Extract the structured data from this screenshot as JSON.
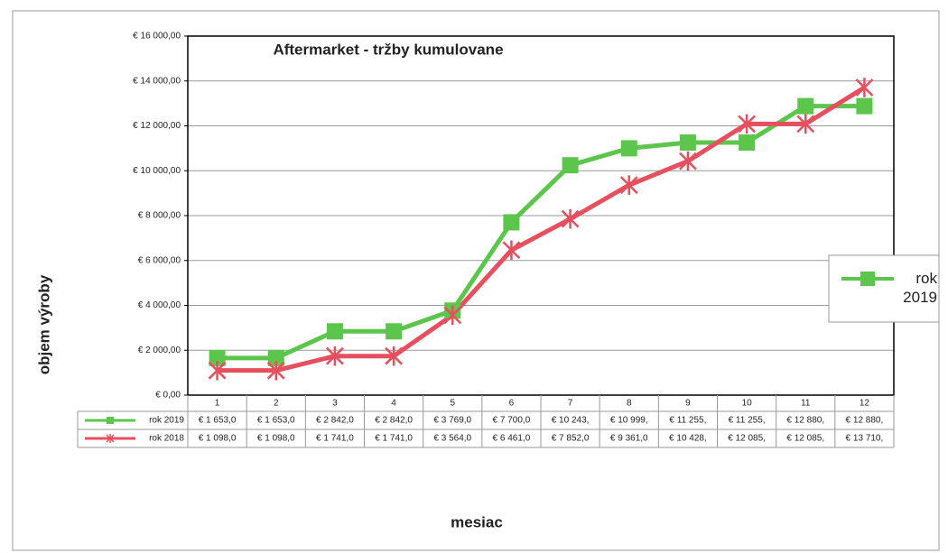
{
  "chart_data": {
    "type": "line",
    "title": "Aftermarket  - tržby kumulovane",
    "y_label": "objem výroby",
    "x_label": "mesiac",
    "categories": [
      "1",
      "2",
      "3",
      "4",
      "5",
      "6",
      "7",
      "8",
      "9",
      "10",
      "11",
      "12"
    ],
    "series": [
      {
        "name": "rok 2019",
        "color": "#5cc64c",
        "marker": "square",
        "values": [
          1653,
          1653,
          2842,
          2842,
          3769,
          7700,
          10243,
          10999,
          11255,
          11255,
          12880,
          12880
        ],
        "value_labels": [
          "€ 1 653,0",
          "€ 1 653,0",
          "€ 2 842,0",
          "€ 2 842,0",
          "€ 3 769,0",
          "€ 7 700,0",
          "€ 10 243,",
          "€ 10 999,",
          "€ 11 255,",
          "€ 11 255,",
          "€ 12 880,",
          "€ 12 880,"
        ]
      },
      {
        "name": "rok 2018",
        "color": "#e6505e",
        "marker": "star",
        "values": [
          1098,
          1098,
          1741,
          1741,
          3564,
          6461,
          7852,
          9361,
          10428,
          12085,
          12085,
          13710
        ],
        "value_labels": [
          "€ 1 098,0",
          "€ 1 098,0",
          "€ 1 741,0",
          "€ 1 741,0",
          "€ 3 564,0",
          "€ 6 461,0",
          "€ 7 852,0",
          "€ 9 361,0",
          "€ 10 428,",
          "€ 12 085,",
          "€ 12 085,",
          "€ 13 710,"
        ]
      }
    ],
    "ylim": [
      0,
      16000
    ],
    "yticks": [
      {
        "value": 0,
        "label": "€ 0,00"
      },
      {
        "value": 2000,
        "label": "€ 2 000,00"
      },
      {
        "value": 4000,
        "label": "€ 4 000,00"
      },
      {
        "value": 6000,
        "label": "€ 6 000,00"
      },
      {
        "value": 8000,
        "label": "€ 8 000,00"
      },
      {
        "value": 10000,
        "label": "€ 10 000,00"
      },
      {
        "value": 12000,
        "label": "€ 12 000,00"
      },
      {
        "value": 14000,
        "label": "€ 14 000,00"
      },
      {
        "value": 16000,
        "label": "€ 16 000,00"
      }
    ],
    "grid": true,
    "legend": "right",
    "data_table": true
  }
}
